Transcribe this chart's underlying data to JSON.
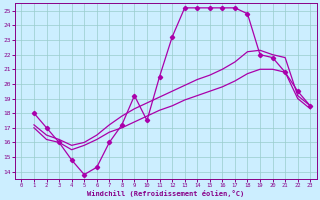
{
  "xlabel": "Windchill (Refroidissement éolien,°C)",
  "bg_color": "#cceeff",
  "line_color": "#aa00aa",
  "grid_color": "#99cccc",
  "text_color": "#880088",
  "axis_color": "#880088",
  "xlim": [
    -0.5,
    23.5
  ],
  "ylim": [
    13.5,
    25.5
  ],
  "xticks": [
    0,
    1,
    2,
    3,
    4,
    5,
    6,
    7,
    8,
    9,
    10,
    11,
    12,
    13,
    14,
    15,
    16,
    17,
    18,
    19,
    20,
    21,
    22,
    23
  ],
  "yticks": [
    14,
    15,
    16,
    17,
    18,
    19,
    20,
    21,
    22,
    23,
    24,
    25
  ],
  "curve1_x": [
    1,
    2,
    3,
    4,
    5,
    6,
    7,
    8,
    9,
    10,
    11,
    12,
    13,
    14,
    15,
    16,
    17,
    18,
    19,
    20,
    21,
    22,
    23
  ],
  "curve1_y": [
    18.0,
    17.0,
    16.0,
    14.8,
    13.8,
    14.3,
    16.0,
    17.2,
    19.2,
    17.5,
    20.5,
    23.2,
    25.2,
    25.2,
    25.2,
    25.2,
    25.2,
    24.8,
    22.0,
    21.8,
    20.8,
    19.5,
    18.5
  ],
  "curve2_x": [
    1,
    2,
    3,
    4,
    5,
    6,
    7,
    8,
    9,
    10,
    11,
    12,
    13,
    14,
    15,
    16,
    17,
    18,
    19,
    20,
    21,
    22,
    23
  ],
  "curve2_y": [
    17.2,
    16.5,
    16.2,
    15.8,
    16.0,
    16.5,
    17.2,
    17.8,
    18.3,
    18.7,
    19.1,
    19.5,
    19.9,
    20.3,
    20.6,
    21.0,
    21.5,
    22.2,
    22.3,
    22.0,
    21.8,
    19.2,
    18.5
  ],
  "curve3_x": [
    1,
    2,
    3,
    4,
    5,
    6,
    7,
    8,
    9,
    10,
    11,
    12,
    13,
    14,
    15,
    16,
    17,
    18,
    19,
    20,
    21,
    22,
    23
  ],
  "curve3_y": [
    17.0,
    16.2,
    16.0,
    15.5,
    15.8,
    16.2,
    16.7,
    17.0,
    17.4,
    17.8,
    18.2,
    18.5,
    18.9,
    19.2,
    19.5,
    19.8,
    20.2,
    20.7,
    21.0,
    21.0,
    20.8,
    19.0,
    18.3
  ]
}
